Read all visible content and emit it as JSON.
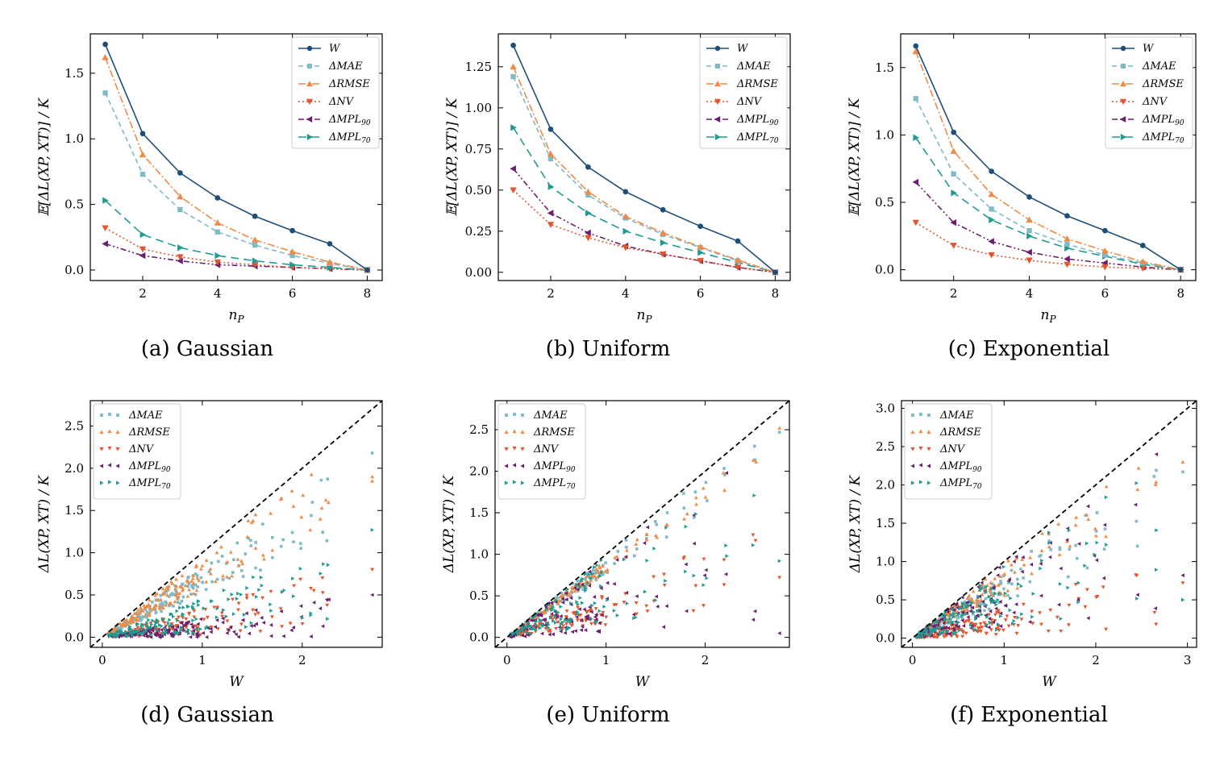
{
  "colors": {
    "W": "#1f4e79",
    "MAE": "#7fbac7",
    "RMSE": "#ef8a47",
    "NV": "#e5542d",
    "MPL90": "#6b1f6f",
    "MPL70": "#1f9b91"
  },
  "legend_labels": {
    "W": "W",
    "MAE": "ΔMAE",
    "RMSE": "ΔRMSE",
    "NV": "ΔNV",
    "MPL90": "ΔMPL90",
    "MPL70": "ΔMPL70"
  },
  "chart_data": [
    {
      "type": "line",
      "panel": "a",
      "caption": "(a) Gaussian",
      "xlabel": "nP",
      "ylabel": "𝔼[ΔL(XP, XT)] / K",
      "xlim": [
        0.6,
        8.4
      ],
      "ylim": [
        -0.08,
        1.8
      ],
      "xticks": [
        2,
        4,
        6,
        8
      ],
      "yticks": [
        0.0,
        0.5,
        1.0,
        1.5
      ],
      "ytick_labels": [
        "0.0",
        "0.5",
        "1.0",
        "1.5"
      ],
      "x": [
        1,
        2,
        3,
        4,
        5,
        6,
        7,
        8
      ],
      "legend_position": "top-right",
      "series": [
        {
          "name": "W",
          "values": [
            1.72,
            1.04,
            0.74,
            0.55,
            0.41,
            0.3,
            0.2,
            0.0
          ]
        },
        {
          "name": "ΔMAE",
          "values": [
            1.35,
            0.73,
            0.46,
            0.29,
            0.19,
            0.11,
            0.05,
            0.0
          ]
        },
        {
          "name": "ΔRMSE",
          "values": [
            1.62,
            0.88,
            0.56,
            0.36,
            0.23,
            0.14,
            0.06,
            0.0
          ]
        },
        {
          "name": "ΔNV",
          "values": [
            0.32,
            0.16,
            0.1,
            0.06,
            0.04,
            0.02,
            0.01,
            0.0
          ]
        },
        {
          "name": "ΔMPL90",
          "values": [
            0.2,
            0.11,
            0.07,
            0.04,
            0.03,
            0.02,
            0.01,
            0.0
          ]
        },
        {
          "name": "ΔMPL70",
          "values": [
            0.53,
            0.27,
            0.17,
            0.11,
            0.07,
            0.04,
            0.02,
            0.0
          ]
        }
      ]
    },
    {
      "type": "line",
      "panel": "b",
      "caption": "(b) Uniform",
      "xlabel": "nP",
      "ylabel": "𝔼[ΔL(XP, XT)] / K",
      "xlim": [
        0.6,
        8.4
      ],
      "ylim": [
        -0.05,
        1.45
      ],
      "xticks": [
        2,
        4,
        6,
        8
      ],
      "yticks": [
        0.0,
        0.25,
        0.5,
        0.75,
        1.0,
        1.25
      ],
      "ytick_labels": [
        "0.00",
        "0.25",
        "0.50",
        "0.75",
        "1.00",
        "1.25"
      ],
      "x": [
        1,
        2,
        3,
        4,
        5,
        6,
        7,
        8
      ],
      "legend_position": "top-right",
      "series": [
        {
          "name": "W",
          "values": [
            1.38,
            0.87,
            0.64,
            0.49,
            0.38,
            0.28,
            0.19,
            0.0
          ]
        },
        {
          "name": "ΔMAE",
          "values": [
            1.19,
            0.69,
            0.47,
            0.33,
            0.23,
            0.15,
            0.07,
            0.0
          ]
        },
        {
          "name": "ΔRMSE",
          "values": [
            1.25,
            0.72,
            0.49,
            0.34,
            0.24,
            0.155,
            0.075,
            0.0
          ]
        },
        {
          "name": "ΔNV",
          "values": [
            0.5,
            0.29,
            0.21,
            0.15,
            0.11,
            0.07,
            0.03,
            0.0
          ]
        },
        {
          "name": "ΔMPL90",
          "values": [
            0.63,
            0.36,
            0.24,
            0.16,
            0.11,
            0.07,
            0.03,
            0.0
          ]
        },
        {
          "name": "ΔMPL70",
          "values": [
            0.88,
            0.52,
            0.36,
            0.25,
            0.18,
            0.12,
            0.06,
            0.0
          ]
        }
      ]
    },
    {
      "type": "line",
      "panel": "c",
      "caption": "(c) Exponential",
      "xlabel": "nP",
      "ylabel": "𝔼[ΔL(XP, XT)] / K",
      "xlim": [
        0.6,
        8.4
      ],
      "ylim": [
        -0.08,
        1.75
      ],
      "xticks": [
        2,
        4,
        6,
        8
      ],
      "yticks": [
        0.0,
        0.5,
        1.0,
        1.5
      ],
      "ytick_labels": [
        "0.0",
        "0.5",
        "1.0",
        "1.5"
      ],
      "x": [
        1,
        2,
        3,
        4,
        5,
        6,
        7,
        8
      ],
      "legend_position": "top-right",
      "series": [
        {
          "name": "W",
          "values": [
            1.66,
            1.02,
            0.73,
            0.54,
            0.4,
            0.29,
            0.18,
            0.0
          ]
        },
        {
          "name": "ΔMAE",
          "values": [
            1.27,
            0.71,
            0.45,
            0.29,
            0.19,
            0.11,
            0.05,
            0.0
          ]
        },
        {
          "name": "ΔRMSE",
          "values": [
            1.62,
            0.88,
            0.56,
            0.37,
            0.23,
            0.14,
            0.06,
            0.0
          ]
        },
        {
          "name": "ΔNV",
          "values": [
            0.35,
            0.18,
            0.11,
            0.07,
            0.04,
            0.02,
            0.01,
            0.0
          ]
        },
        {
          "name": "ΔMPL90",
          "values": [
            0.65,
            0.35,
            0.21,
            0.13,
            0.08,
            0.05,
            0.02,
            0.0
          ]
        },
        {
          "name": "ΔMPL70",
          "values": [
            0.98,
            0.57,
            0.37,
            0.25,
            0.16,
            0.1,
            0.04,
            0.0
          ]
        }
      ]
    },
    {
      "type": "scatter",
      "panel": "d",
      "caption": "(d) Gaussian",
      "xlabel": "W",
      "ylabel": "ΔL(XP, XT) / K",
      "xlim": [
        -0.12,
        2.8
      ],
      "ylim": [
        -0.12,
        2.8
      ],
      "xticks": [
        0,
        1,
        2
      ],
      "yticks": [
        0.0,
        0.5,
        1.0,
        1.5,
        2.0,
        2.5
      ],
      "ytick_labels": [
        "0.0",
        "0.5",
        "1.0",
        "1.5",
        "2.0",
        "2.5"
      ],
      "legend_position": "top-left",
      "reference_line": "y = x (dashed)",
      "point_groups": {
        "W_values": [
          0.08,
          0.12,
          0.16,
          0.2,
          0.24,
          0.28,
          0.32,
          0.36,
          0.4,
          0.44,
          0.48,
          0.52,
          0.56,
          0.6,
          0.64,
          0.68,
          0.72,
          0.76,
          0.8,
          0.85,
          0.9,
          0.95,
          1.0,
          1.05,
          1.1,
          1.15,
          1.2,
          1.25,
          1.3,
          1.35,
          1.4,
          1.45,
          1.5,
          1.55,
          1.6,
          1.7,
          1.8,
          1.9,
          2.0,
          2.1,
          2.2,
          2.25,
          2.7
        ],
        "ratio_ranges": {
          "ΔMAE": [
            0.5,
            0.85
          ],
          "ΔRMSE": [
            0.55,
            0.95
          ],
          "ΔNV": [
            0.02,
            0.35
          ],
          "ΔMPL90": [
            0.0,
            0.22
          ],
          "ΔMPL70": [
            0.05,
            0.47
          ]
        }
      },
      "series": [
        {
          "name": "ΔMAE",
          "values_at_max_W": [
            2.18
          ]
        },
        {
          "name": "ΔRMSE",
          "values_at_max_W": [
            1.9,
            1.85
          ]
        },
        {
          "name": "ΔNV",
          "values_at_max_W": [
            0.8
          ]
        },
        {
          "name": "ΔMPL90",
          "values_at_max_W": [
            0.5
          ]
        },
        {
          "name": "ΔMPL70",
          "values_at_max_W": [
            1.27
          ]
        }
      ]
    },
    {
      "type": "scatter",
      "panel": "e",
      "caption": "(e) Uniform",
      "xlabel": "W",
      "ylabel": "ΔL(XP, XT) / K",
      "xlim": [
        -0.12,
        2.85
      ],
      "ylim": [
        -0.12,
        2.85
      ],
      "xticks": [
        0,
        1,
        2
      ],
      "yticks": [
        0.0,
        0.5,
        1.0,
        1.5,
        2.0,
        2.5
      ],
      "ytick_labels": [
        "0.0",
        "0.5",
        "1.0",
        "1.5",
        "2.0",
        "2.5"
      ],
      "legend_position": "top-left",
      "reference_line": "y = x (dashed)",
      "point_groups": {
        "W_values": [
          0.05,
          0.1,
          0.15,
          0.2,
          0.25,
          0.3,
          0.35,
          0.4,
          0.45,
          0.5,
          0.55,
          0.6,
          0.65,
          0.7,
          0.75,
          0.8,
          0.85,
          0.9,
          0.95,
          1.0,
          1.1,
          1.2,
          1.3,
          1.4,
          1.5,
          1.6,
          1.8,
          1.9,
          2.0,
          2.2,
          2.5,
          2.75
        ],
        "ratio_ranges": {
          "ΔMAE": [
            0.75,
            0.98
          ],
          "ΔRMSE": [
            0.78,
            0.92
          ],
          "ΔNV": [
            0.15,
            0.55
          ],
          "ΔMPL90": [
            0.05,
            0.98
          ],
          "ΔMPL70": [
            0.15,
            0.98
          ]
        }
      },
      "series": [
        {
          "name": "ΔMAE",
          "values_at_max_W": [
            2.47
          ]
        },
        {
          "name": "ΔRMSE",
          "values_at_max_W": [
            2.52
          ]
        },
        {
          "name": "ΔNV",
          "values_at_max_W": [
            0.72
          ]
        },
        {
          "name": "ΔMPL90",
          "values_at_max_W": [
            0.05
          ]
        },
        {
          "name": "ΔMPL70",
          "values_at_max_W": [
            0.92
          ]
        }
      ]
    },
    {
      "type": "scatter",
      "panel": "f",
      "caption": "(f) Exponential",
      "xlabel": "W",
      "ylabel": "ΔL(XP, XT) / K",
      "xlim": [
        -0.12,
        3.1
      ],
      "ylim": [
        -0.12,
        3.1
      ],
      "xticks": [
        0,
        1,
        2,
        3
      ],
      "yticks": [
        0.0,
        0.5,
        1.0,
        1.5,
        2.0,
        2.5,
        3.0
      ],
      "ytick_labels": [
        "0.0",
        "0.5",
        "1.0",
        "1.5",
        "2.0",
        "2.5",
        "3.0"
      ],
      "legend_position": "top-left",
      "reference_line": "y = x (dashed)",
      "point_groups": {
        "W_values": [
          0.06,
          0.1,
          0.14,
          0.18,
          0.22,
          0.26,
          0.3,
          0.34,
          0.38,
          0.42,
          0.46,
          0.5,
          0.55,
          0.6,
          0.65,
          0.7,
          0.75,
          0.8,
          0.85,
          0.9,
          0.95,
          1.0,
          1.05,
          1.1,
          1.15,
          1.2,
          1.3,
          1.4,
          1.5,
          1.6,
          1.7,
          1.8,
          1.9,
          2.0,
          2.1,
          2.45,
          2.65,
          2.95
        ],
        "ratio_ranges": {
          "ΔMAE": [
            0.45,
            0.9
          ],
          "ΔRMSE": [
            0.55,
            0.98
          ],
          "ΔNV": [
            0.03,
            0.4
          ],
          "ΔMPL90": [
            0.1,
            0.98
          ],
          "ΔMPL70": [
            0.1,
            0.98
          ]
        }
      },
      "series": [
        {
          "name": "ΔMAE",
          "values_at_max_W": [
            2.17
          ]
        },
        {
          "name": "ΔRMSE",
          "values_at_max_W": [
            2.3
          ]
        },
        {
          "name": "ΔNV",
          "values_at_max_W": [
            0.72
          ]
        },
        {
          "name": "ΔMPL90",
          "values_at_max_W": [
            0.82
          ]
        },
        {
          "name": "ΔMPL70",
          "values_at_max_W": [
            0.5
          ]
        }
      ]
    }
  ]
}
